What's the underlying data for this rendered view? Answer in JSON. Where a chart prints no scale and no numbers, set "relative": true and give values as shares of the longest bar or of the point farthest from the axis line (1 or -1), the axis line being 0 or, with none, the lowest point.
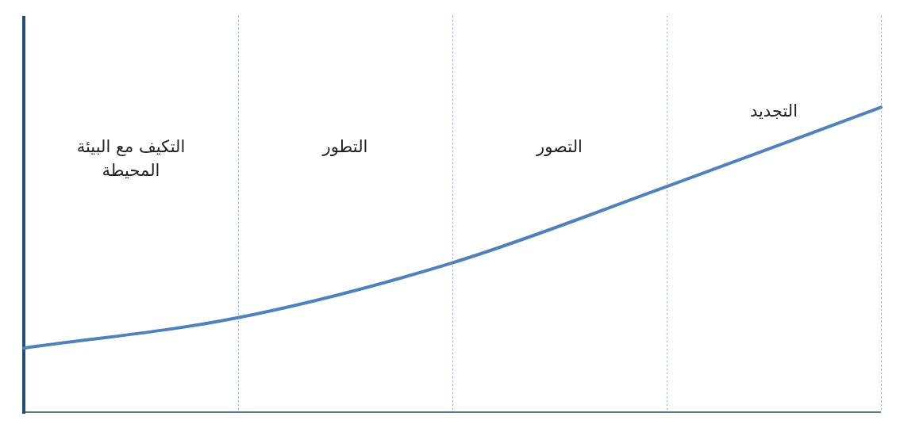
{
  "chart_data": {
    "type": "line",
    "relative": true,
    "marker": "none",
    "line_style": "solid",
    "grid": "x",
    "categories": [
      null,
      null,
      null,
      null,
      null
    ],
    "series": [
      {
        "color": "#4f81bd",
        "values": [
          0.21,
          0.31,
          0.49,
          0.74,
          1.0
        ]
      }
    ],
    "annotations": [
      "التكيف مع البيئة المحيطة",
      "التطور",
      "التصور",
      "التجديد"
    ]
  }
}
